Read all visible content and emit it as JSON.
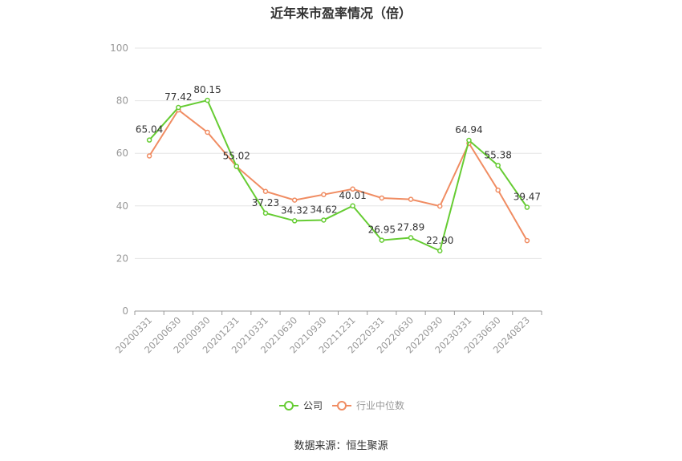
{
  "chart_data": {
    "type": "line",
    "title": "近年来市盈率情况（倍）",
    "categories": [
      "20200331",
      "20200630",
      "20200930",
      "20201231",
      "20210331",
      "20210630",
      "20210930",
      "20211231",
      "20220331",
      "20220630",
      "20220930",
      "20230331",
      "20230630",
      "20240823"
    ],
    "series": [
      {
        "name": "公司",
        "color": "#66cc33",
        "values": [
          65.04,
          77.42,
          80.15,
          55.02,
          37.23,
          34.32,
          34.62,
          40.01,
          26.95,
          27.89,
          22.9,
          64.94,
          55.38,
          39.47
        ],
        "labels": [
          "65.04",
          "77.42",
          "80.15",
          "55.02",
          "37.23",
          "34.32",
          "34.62",
          "40.01",
          "26.95",
          "27.89",
          "22.90",
          "64.94",
          "55.38",
          "39.47"
        ]
      },
      {
        "name": "行业中位数",
        "color": "#f08c62",
        "values": [
          59.0,
          76.5,
          68.0,
          55.0,
          45.5,
          42.2,
          44.3,
          46.4,
          43.0,
          42.5,
          39.9,
          63.8,
          46.0,
          26.8
        ]
      }
    ],
    "ylim": [
      0,
      100
    ],
    "yticks": [
      "0",
      "20",
      "40",
      "60",
      "80",
      "100"
    ],
    "grid": true,
    "legend_position": "bottom-center",
    "source": "数据来源：恒生聚源"
  }
}
